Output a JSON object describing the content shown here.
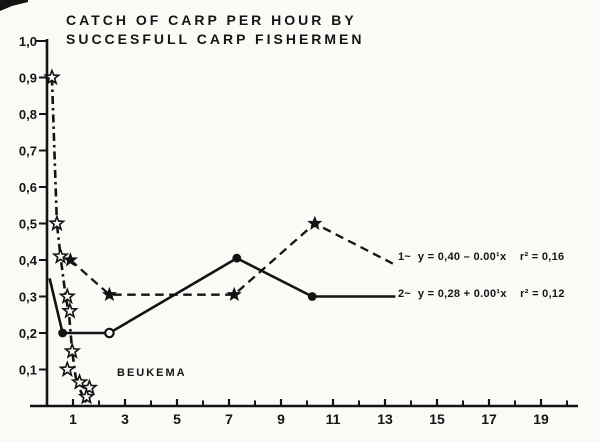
{
  "colors": {
    "ink": "#131313",
    "paper": "#fbfaf7"
  },
  "chart_data": {
    "type": "line",
    "title": "CATCH OF CARP PER HOUR BY SUCCESFULL CARP FISHERMEN",
    "title_line1": "CATCH OF CARP PER HOUR BY",
    "title_line2": "SUCCESFULL CARP FISHERMEN",
    "xlabel": "",
    "ylabel": "",
    "xlim": [
      0,
      20.5
    ],
    "ylim": [
      0,
      1.0
    ],
    "grid": false,
    "legend_position": "inline labels at right ends of lines",
    "y_ticks": [
      {
        "v": 1.0,
        "label": "1,0"
      },
      {
        "v": 0.9,
        "label": "0,9"
      },
      {
        "v": 0.8,
        "label": "0,8"
      },
      {
        "v": 0.7,
        "label": "0,7"
      },
      {
        "v": 0.6,
        "label": "0,6"
      },
      {
        "v": 0.5,
        "label": "0,5"
      },
      {
        "v": 0.4,
        "label": "0,4"
      },
      {
        "v": 0.3,
        "label": "0,3"
      },
      {
        "v": 0.2,
        "label": "0,2"
      },
      {
        "v": 0.1,
        "label": "0,1"
      }
    ],
    "x_ticks": {
      "labeled": [
        1,
        3,
        5,
        7,
        9,
        11,
        13,
        15,
        17,
        19
      ],
      "minor": [
        2,
        4,
        6,
        8,
        10,
        12,
        14,
        16,
        18,
        20
      ]
    },
    "series": [
      {
        "name": "beukema",
        "label": "BEUKEMA",
        "line_style": "dash-dot",
        "marker": "open-star",
        "line": [
          [
            0.19,
            0.9
          ],
          [
            0.38,
            0.5
          ],
          [
            0.52,
            0.41
          ],
          [
            0.72,
            0.3
          ],
          [
            0.85,
            0.25
          ],
          [
            0.97,
            0.15
          ],
          [
            1.1,
            0.08
          ],
          [
            1.3,
            0.04
          ],
          [
            1.5,
            0.01
          ]
        ],
        "markers": [
          [
            0.19,
            0.9
          ],
          [
            0.38,
            0.5
          ],
          [
            0.52,
            0.41
          ],
          [
            0.78,
            0.3
          ],
          [
            0.88,
            0.26
          ],
          [
            0.97,
            0.15
          ],
          [
            0.78,
            0.1
          ],
          [
            1.25,
            0.065
          ],
          [
            1.63,
            0.05
          ],
          [
            1.52,
            0.025
          ]
        ]
      },
      {
        "name": "fishermen-1",
        "label": "1~ y = 0,40 – 0.00¹x  r² = 0,16",
        "equation": "y = 0,40 – 0.00¹x",
        "r_squared": "0,16",
        "line_style": "dashed",
        "marker": "filled-star",
        "line": [
          [
            0.9,
            0.4
          ],
          [
            2.4,
            0.305
          ],
          [
            7.2,
            0.305
          ],
          [
            10.3,
            0.5
          ],
          [
            13.3,
            0.39
          ]
        ],
        "markers": [
          [
            0.9,
            0.4
          ],
          [
            2.4,
            0.305
          ],
          [
            7.2,
            0.305
          ],
          [
            10.3,
            0.5
          ]
        ]
      },
      {
        "name": "fishermen-2",
        "label": "2~ y = 0,28 + 0.00¹x  r² = 0,12",
        "equation": "y = 0,28 + 0.00¹x",
        "r_squared": "0,12",
        "line_style": "solid",
        "marker": "filled-circle",
        "line": [
          [
            0.1,
            0.35
          ],
          [
            0.6,
            0.2
          ],
          [
            2.4,
            0.2
          ],
          [
            7.3,
            0.405
          ],
          [
            10.2,
            0.3
          ],
          [
            13.4,
            0.3
          ]
        ],
        "markers": [
          [
            0.6,
            0.2
          ],
          [
            7.3,
            0.405
          ],
          [
            10.2,
            0.3
          ]
        ],
        "open_markers": [
          [
            2.4,
            0.2
          ]
        ]
      }
    ],
    "annotations": [
      {
        "name": "series1-equation",
        "text": "1~  y = 0,40 – 0.00¹x    r² = 0,16"
      },
      {
        "name": "series2-equation",
        "text": "2~  y = 0,28 + 0.00¹x    r² = 0,12"
      },
      {
        "name": "beukema-label",
        "text": "BEUKEMA"
      }
    ]
  }
}
